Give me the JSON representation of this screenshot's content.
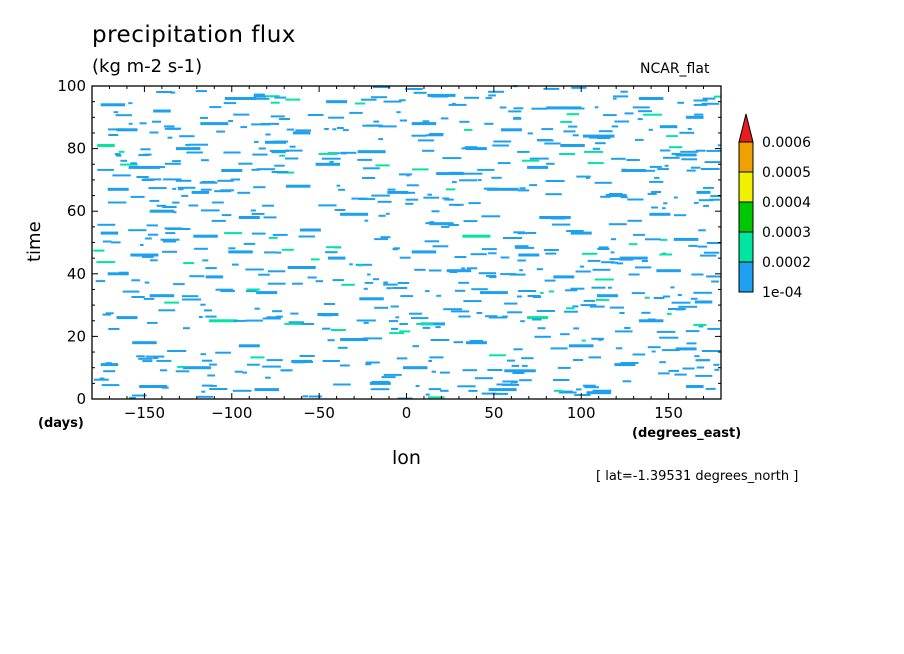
{
  "header": {
    "title": "precipitation flux",
    "units": "(kg m-2 s-1)",
    "colormap": "NCAR_flat"
  },
  "footnote": "[ lat=-1.39531 degrees_north ]",
  "chart_data": {
    "type": "heatmap",
    "title": "precipitation flux",
    "subtitle": "(kg m-2 s-1)",
    "xlabel": "lon",
    "ylabel": "time",
    "x_units": "(degrees_east)",
    "y_units": "(days)",
    "xlim": [
      -180,
      180
    ],
    "ylim": [
      0,
      100
    ],
    "xticks": [
      -150,
      -100,
      -50,
      0,
      50,
      100,
      150
    ],
    "xtick_labels": [
      "−150",
      "−100",
      "−50",
      "0",
      "50",
      "100",
      "150"
    ],
    "yticks": [
      0,
      20,
      40,
      60,
      80,
      100
    ],
    "ytick_labels": [
      "0",
      "20",
      "40",
      "60",
      "80",
      "100"
    ],
    "colorbar": {
      "levels": [
        "1e-04",
        "0.0002",
        "0.0003",
        "0.0004",
        "0.0005",
        "0.0006"
      ],
      "colors": [
        "#1ea0f0",
        "#00e6a0",
        "#00c800",
        "#f0f000",
        "#f0a000",
        "#e61e1e"
      ],
      "extend": "max"
    },
    "patches": [
      {
        "lon": -168,
        "t": 94,
        "w": 14,
        "v": 1
      },
      {
        "lon": -140,
        "t": 92,
        "w": 10,
        "v": 1
      },
      {
        "lon": -95,
        "t": 96,
        "w": 18,
        "v": 1
      },
      {
        "lon": -40,
        "t": 95,
        "w": 12,
        "v": 1
      },
      {
        "lon": 20,
        "t": 97,
        "w": 16,
        "v": 1
      },
      {
        "lon": 90,
        "t": 93,
        "w": 20,
        "v": 1
      },
      {
        "lon": 140,
        "t": 96,
        "w": 14,
        "v": 1
      },
      {
        "lon": 165,
        "t": 90,
        "w": 10,
        "v": 1
      },
      {
        "lon": -160,
        "t": 86,
        "w": 12,
        "v": 1
      },
      {
        "lon": -110,
        "t": 88,
        "w": 16,
        "v": 1
      },
      {
        "lon": -60,
        "t": 85,
        "w": 10,
        "v": 1
      },
      {
        "lon": 10,
        "t": 88,
        "w": 14,
        "v": 1
      },
      {
        "lon": 60,
        "t": 86,
        "w": 12,
        "v": 1
      },
      {
        "lon": 110,
        "t": 84,
        "w": 18,
        "v": 1
      },
      {
        "lon": 150,
        "t": 87,
        "w": 10,
        "v": 1
      },
      {
        "lon": -172,
        "t": 81,
        "w": 10,
        "v": 2
      },
      {
        "lon": -125,
        "t": 80,
        "w": 14,
        "v": 1
      },
      {
        "lon": -75,
        "t": 82,
        "w": 12,
        "v": 1
      },
      {
        "lon": -20,
        "t": 79,
        "w": 16,
        "v": 1
      },
      {
        "lon": 40,
        "t": 80,
        "w": 12,
        "v": 1
      },
      {
        "lon": 95,
        "t": 81,
        "w": 14,
        "v": 1
      },
      {
        "lon": 160,
        "t": 78,
        "w": 12,
        "v": 1
      },
      {
        "lon": -150,
        "t": 74,
        "w": 18,
        "v": 1
      },
      {
        "lon": -100,
        "t": 73,
        "w": 12,
        "v": 1
      },
      {
        "lon": -45,
        "t": 75,
        "w": 14,
        "v": 1
      },
      {
        "lon": 25,
        "t": 72,
        "w": 16,
        "v": 1
      },
      {
        "lon": 75,
        "t": 74,
        "w": 12,
        "v": 1
      },
      {
        "lon": 130,
        "t": 73,
        "w": 14,
        "v": 1
      },
      {
        "lon": -165,
        "t": 67,
        "w": 12,
        "v": 1
      },
      {
        "lon": -118,
        "t": 66,
        "w": 10,
        "v": 1
      },
      {
        "lon": -62,
        "t": 68,
        "w": 14,
        "v": 1
      },
      {
        "lon": -5,
        "t": 66,
        "w": 12,
        "v": 1
      },
      {
        "lon": 55,
        "t": 67,
        "w": 18,
        "v": 1
      },
      {
        "lon": 120,
        "t": 65,
        "w": 12,
        "v": 1
      },
      {
        "lon": 170,
        "t": 66,
        "w": 8,
        "v": 1
      },
      {
        "lon": -140,
        "t": 60,
        "w": 14,
        "v": 1
      },
      {
        "lon": -90,
        "t": 58,
        "w": 12,
        "v": 1
      },
      {
        "lon": -30,
        "t": 59,
        "w": 16,
        "v": 1
      },
      {
        "lon": 20,
        "t": 56,
        "w": 14,
        "v": 1
      },
      {
        "lon": 85,
        "t": 58,
        "w": 18,
        "v": 1
      },
      {
        "lon": 145,
        "t": 59,
        "w": 12,
        "v": 1
      },
      {
        "lon": -170,
        "t": 53,
        "w": 10,
        "v": 1
      },
      {
        "lon": -115,
        "t": 52,
        "w": 14,
        "v": 1
      },
      {
        "lon": -55,
        "t": 54,
        "w": 12,
        "v": 1
      },
      {
        "lon": 40,
        "t": 52,
        "w": 16,
        "v": 2
      },
      {
        "lon": 100,
        "t": 53,
        "w": 12,
        "v": 1
      },
      {
        "lon": 160,
        "t": 51,
        "w": 14,
        "v": 1
      },
      {
        "lon": -150,
        "t": 46,
        "w": 16,
        "v": 1
      },
      {
        "lon": -95,
        "t": 47,
        "w": 14,
        "v": 1
      },
      {
        "lon": -40,
        "t": 45,
        "w": 10,
        "v": 1
      },
      {
        "lon": 10,
        "t": 47,
        "w": 14,
        "v": 1
      },
      {
        "lon": 70,
        "t": 46,
        "w": 12,
        "v": 1
      },
      {
        "lon": 130,
        "t": 45,
        "w": 16,
        "v": 1
      },
      {
        "lon": -165,
        "t": 40,
        "w": 12,
        "v": 1
      },
      {
        "lon": -110,
        "t": 39,
        "w": 10,
        "v": 1
      },
      {
        "lon": -60,
        "t": 42,
        "w": 16,
        "v": 1
      },
      {
        "lon": 30,
        "t": 41,
        "w": 14,
        "v": 1
      },
      {
        "lon": 90,
        "t": 39,
        "w": 12,
        "v": 1
      },
      {
        "lon": 150,
        "t": 41,
        "w": 14,
        "v": 1
      },
      {
        "lon": -140,
        "t": 33,
        "w": 14,
        "v": 1
      },
      {
        "lon": -80,
        "t": 34,
        "w": 12,
        "v": 1
      },
      {
        "lon": -20,
        "t": 32,
        "w": 14,
        "v": 1
      },
      {
        "lon": 50,
        "t": 34,
        "w": 16,
        "v": 1
      },
      {
        "lon": 115,
        "t": 33,
        "w": 12,
        "v": 1
      },
      {
        "lon": 170,
        "t": 31,
        "w": 10,
        "v": 1
      },
      {
        "lon": -160,
        "t": 26,
        "w": 12,
        "v": 1
      },
      {
        "lon": -105,
        "t": 25,
        "w": 16,
        "v": 2
      },
      {
        "lon": -45,
        "t": 27,
        "w": 12,
        "v": 1
      },
      {
        "lon": 15,
        "t": 24,
        "w": 14,
        "v": 1
      },
      {
        "lon": 75,
        "t": 26,
        "w": 12,
        "v": 2
      },
      {
        "lon": 140,
        "t": 25,
        "w": 14,
        "v": 1
      },
      {
        "lon": -150,
        "t": 18,
        "w": 14,
        "v": 1
      },
      {
        "lon": -90,
        "t": 17,
        "w": 12,
        "v": 1
      },
      {
        "lon": -30,
        "t": 19,
        "w": 16,
        "v": 1
      },
      {
        "lon": 40,
        "t": 18,
        "w": 12,
        "v": 1
      },
      {
        "lon": 100,
        "t": 17,
        "w": 14,
        "v": 1
      },
      {
        "lon": 160,
        "t": 16,
        "w": 12,
        "v": 1
      },
      {
        "lon": -170,
        "t": 11,
        "w": 10,
        "v": 1
      },
      {
        "lon": -120,
        "t": 10,
        "w": 16,
        "v": 1
      },
      {
        "lon": -60,
        "t": 12,
        "w": 12,
        "v": 1
      },
      {
        "lon": 5,
        "t": 10,
        "w": 14,
        "v": 1
      },
      {
        "lon": 65,
        "t": 9,
        "w": 18,
        "v": 1
      },
      {
        "lon": 125,
        "t": 11,
        "w": 12,
        "v": 1
      },
      {
        "lon": -145,
        "t": 4,
        "w": 16,
        "v": 1
      },
      {
        "lon": -80,
        "t": 3,
        "w": 14,
        "v": 1
      },
      {
        "lon": -15,
        "t": 5,
        "w": 12,
        "v": 1
      },
      {
        "lon": 55,
        "t": 3,
        "w": 16,
        "v": 1
      },
      {
        "lon": 110,
        "t": 2,
        "w": 14,
        "v": 1
      },
      {
        "lon": 165,
        "t": 4,
        "w": 10,
        "v": 1
      }
    ]
  }
}
